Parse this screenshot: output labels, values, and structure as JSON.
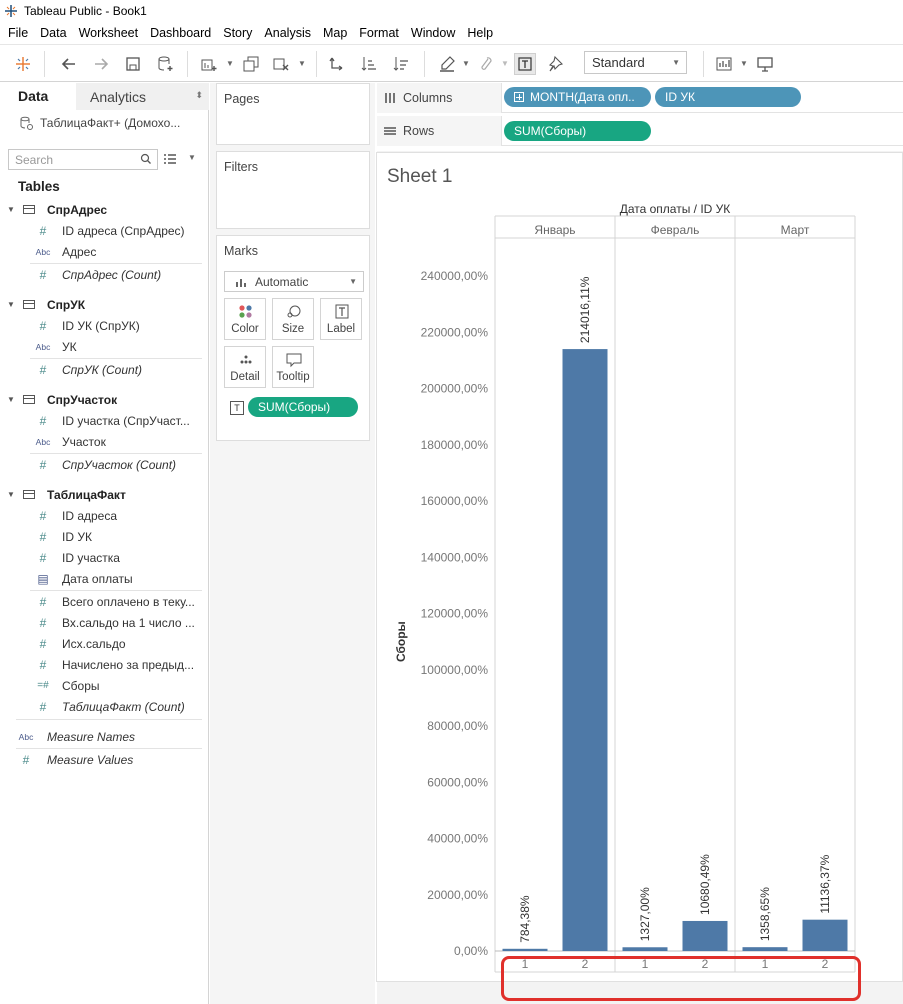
{
  "window": {
    "title": "Tableau Public - Book1"
  },
  "menu": [
    "File",
    "Data",
    "Worksheet",
    "Dashboard",
    "Story",
    "Analysis",
    "Map",
    "Format",
    "Window",
    "Help"
  ],
  "toolbar": {
    "fit_mode": "Standard"
  },
  "data_pane": {
    "tabs": {
      "data": "Data",
      "analytics": "Analytics"
    },
    "datasource": "ТаблицаФакт+ (Домохо...",
    "search_placeholder": "Search",
    "tables_heading": "Tables",
    "tables": [
      {
        "name": "СпрАдрес",
        "fields": [
          {
            "type": "number",
            "label": "ID адреса (СпрАдрес)"
          },
          {
            "type": "text",
            "label": "Адрес"
          },
          {
            "type": "number",
            "label": "СпрАдрес (Count)",
            "italic": true
          }
        ]
      },
      {
        "name": "СпрУК",
        "fields": [
          {
            "type": "number",
            "label": "ID УК (СпрУК)"
          },
          {
            "type": "text",
            "label": "УК"
          },
          {
            "type": "number",
            "label": "СпрУК (Count)",
            "italic": true
          }
        ]
      },
      {
        "name": "СпрУчасток",
        "fields": [
          {
            "type": "number",
            "label": "ID участка (СпрУчаст..."
          },
          {
            "type": "text",
            "label": "Участок"
          },
          {
            "type": "number",
            "label": "СпрУчасток (Count)",
            "italic": true
          }
        ]
      },
      {
        "name": "ТаблицаФакт",
        "fields": [
          {
            "type": "number",
            "label": "ID адреса"
          },
          {
            "type": "number",
            "label": "ID УК"
          },
          {
            "type": "number",
            "label": "ID участка"
          },
          {
            "type": "date",
            "label": "Дата оплаты"
          },
          {
            "type": "number",
            "label": "Всего оплачено в теку..."
          },
          {
            "type": "number",
            "label": "Вх.сальдо на 1 число ..."
          },
          {
            "type": "number",
            "label": "Исх.сальдо"
          },
          {
            "type": "number",
            "label": "Начислено за предыд..."
          },
          {
            "type": "calc",
            "label": "Сборы"
          },
          {
            "type": "number",
            "label": "ТаблицаФакт (Count)",
            "italic": true
          }
        ]
      }
    ],
    "measure_names": "Measure Names",
    "measure_values": "Measure Values"
  },
  "cards": {
    "pages": "Pages",
    "filters": "Filters",
    "marks": "Marks",
    "mark_type": "Automatic",
    "buttons": {
      "color": "Color",
      "size": "Size",
      "label": "Label",
      "detail": "Detail",
      "tooltip": "Tooltip"
    },
    "label_pill": "SUM(Сборы)"
  },
  "shelves": {
    "columns_label": "Columns",
    "rows_label": "Rows",
    "columns_pills": [
      "MONTH(Дата опл..",
      "ID УК"
    ],
    "rows_pill": "SUM(Сборы)"
  },
  "sheet_title": "Sheet 1",
  "colors": {
    "bar": "#4e79a7",
    "green_pill": "#18a682",
    "blue_pill": "#4d95b8",
    "annotation": "#e0302b"
  },
  "chart_data": {
    "type": "bar",
    "title": "",
    "header_title": "Дата оплаты / ID УК",
    "ylabel": "Сборы",
    "ylim": [
      0,
      250000
    ],
    "yticks": [
      0,
      20000,
      40000,
      60000,
      80000,
      100000,
      120000,
      140000,
      160000,
      180000,
      200000,
      220000,
      240000
    ],
    "ytick_labels": [
      "0,00%",
      "20000,00%",
      "40000,00%",
      "60000,00%",
      "80000,00%",
      "100000,00%",
      "120000,00%",
      "140000,00%",
      "160000,00%",
      "180000,00%",
      "200000,00%",
      "220000,00%",
      "240000,00%"
    ],
    "months": [
      {
        "name": "Январь",
        "bars": [
          {
            "uk": "1",
            "value": 784.38,
            "label": "784,38%"
          },
          {
            "uk": "2",
            "value": 214016.11,
            "label": "214016,11%"
          }
        ]
      },
      {
        "name": "Февраль",
        "bars": [
          {
            "uk": "1",
            "value": 1327.0,
            "label": "1327,00%"
          },
          {
            "uk": "2",
            "value": 10680.49,
            "label": "10680,49%"
          }
        ]
      },
      {
        "name": "Март",
        "bars": [
          {
            "uk": "1",
            "value": 1358.65,
            "label": "1358,65%"
          },
          {
            "uk": "2",
            "value": 11136.37,
            "label": "11136,37%"
          }
        ]
      }
    ]
  }
}
